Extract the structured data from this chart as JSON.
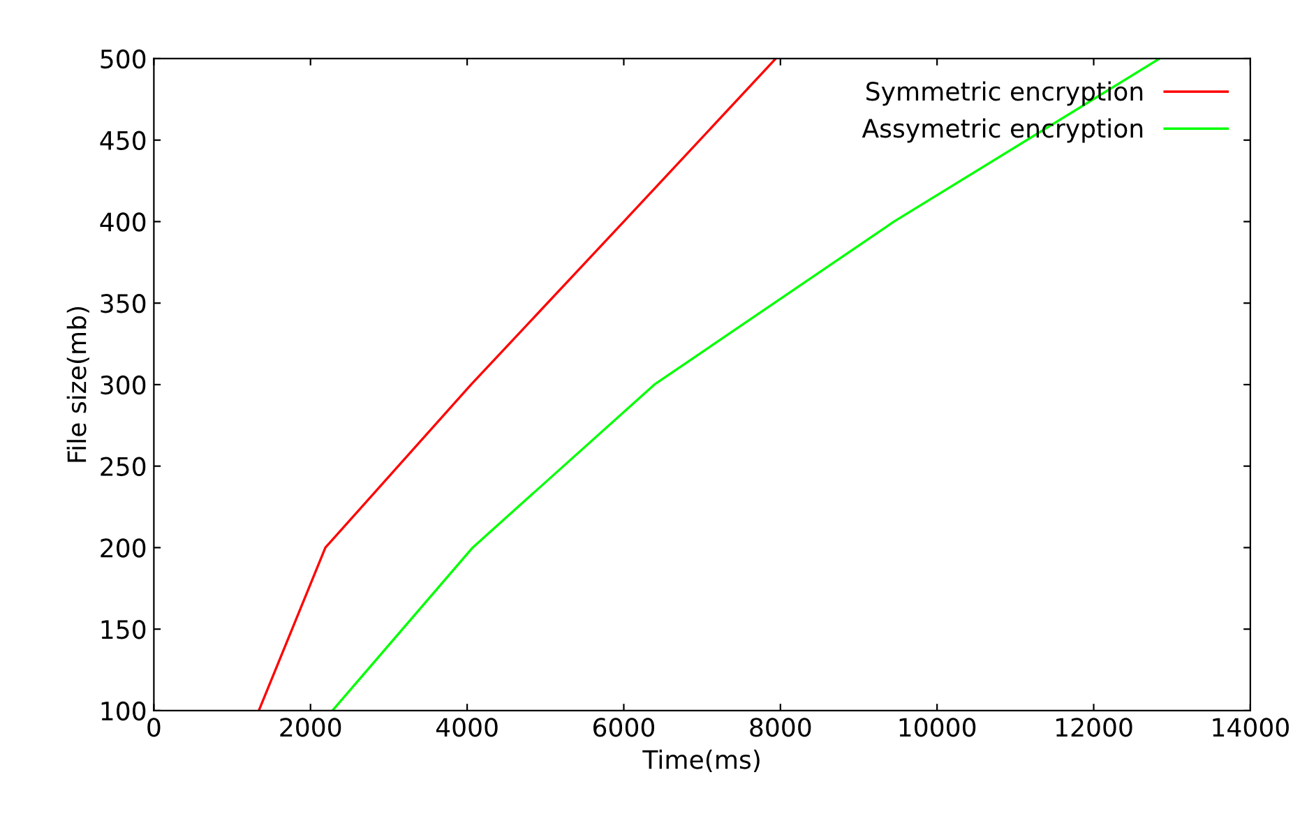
{
  "chart_data": {
    "type": "line",
    "xlabel": "Time(ms)",
    "ylabel": "File size(mb)",
    "series": [
      {
        "name": "Symmetric encryption",
        "color": "#ff0000",
        "x": [
          1340,
          2190,
          4050,
          6000,
          7940
        ],
        "values": [
          100,
          200,
          300,
          400,
          500
        ]
      },
      {
        "name": "Assymetric encryption",
        "color": "#00ff00",
        "x": [
          2280,
          4070,
          6390,
          9450,
          12840
        ],
        "values": [
          100,
          200,
          300,
          400,
          500
        ]
      }
    ],
    "xlim": [
      0,
      14000
    ],
    "xticks": [
      0,
      2000,
      4000,
      6000,
      8000,
      10000,
      12000,
      14000
    ],
    "ylim": [
      100,
      500
    ],
    "yticks": [
      100,
      150,
      200,
      250,
      300,
      350,
      400,
      450,
      500
    ],
    "grid": false,
    "legend": "top right",
    "line_style": "solid",
    "marker": "none"
  }
}
